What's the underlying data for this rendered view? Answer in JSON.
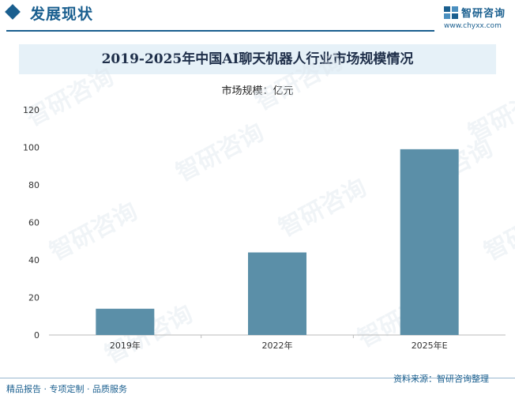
{
  "header": {
    "section_title": "发展现状",
    "logo_name": "智研咨询",
    "logo_url": "www.chyxx.com",
    "brand_color": "#1a5f8f"
  },
  "chart_data": {
    "type": "bar",
    "title": "2019-2025年中国AI聊天机器人行业市场规模情况",
    "ylabel": "市场规模：亿元",
    "xlabel": "",
    "categories": [
      "2019年",
      "2022年",
      "2025年E"
    ],
    "values": [
      14,
      44,
      99
    ],
    "ylim": [
      0,
      120
    ],
    "yticks": [
      "0",
      "20",
      "40",
      "60",
      "80",
      "100",
      "120"
    ],
    "grid": false,
    "legend": "none",
    "bar_color": "#5b8fa8"
  },
  "footer": {
    "left": "精品报告 · 专项定制 · 品质服务",
    "source": "资料来源：智研咨询整理"
  },
  "watermark": {
    "text": "智研咨询"
  }
}
